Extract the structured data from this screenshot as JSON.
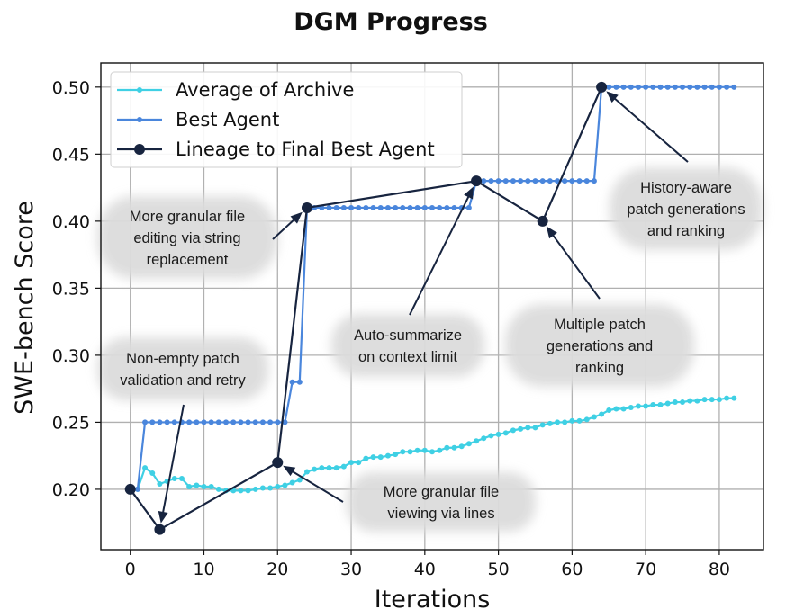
{
  "chart_data": {
    "type": "line",
    "title": "DGM Progress",
    "xlabel": "Iterations",
    "ylabel": "SWE-bench Score",
    "xlim": [
      -4,
      86
    ],
    "ylim": [
      0.155,
      0.518
    ],
    "xticks": [
      0,
      10,
      20,
      30,
      40,
      50,
      60,
      70,
      80
    ],
    "yticks": [
      0.2,
      0.25,
      0.3,
      0.35,
      0.4,
      0.45,
      0.5
    ],
    "xtick_labels": [
      "0",
      "10",
      "20",
      "30",
      "40",
      "50",
      "60",
      "70",
      "80"
    ],
    "ytick_labels": [
      "0.20",
      "0.25",
      "0.30",
      "0.35",
      "0.40",
      "0.45",
      "0.50"
    ],
    "grid": true,
    "legend_position": "top-left",
    "series": [
      {
        "name": "Average of Archive",
        "color": "#3fd0e4",
        "x": [
          0,
          1,
          2,
          3,
          4,
          5,
          6,
          7,
          8,
          9,
          10,
          11,
          12,
          13,
          14,
          15,
          16,
          17,
          18,
          19,
          20,
          21,
          22,
          23,
          24,
          25,
          26,
          27,
          28,
          29,
          30,
          31,
          32,
          33,
          34,
          35,
          36,
          37,
          38,
          39,
          40,
          41,
          42,
          43,
          44,
          45,
          46,
          47,
          48,
          49,
          50,
          51,
          52,
          53,
          54,
          55,
          56,
          57,
          58,
          59,
          60,
          61,
          62,
          63,
          64,
          65,
          66,
          67,
          68,
          69,
          70,
          71,
          72,
          73,
          74,
          75,
          76,
          77,
          78,
          79,
          80,
          81,
          82
        ],
        "y": [
          0.2,
          0.2,
          0.216,
          0.212,
          0.204,
          0.206,
          0.208,
          0.208,
          0.202,
          0.203,
          0.202,
          0.202,
          0.2,
          0.199,
          0.199,
          0.199,
          0.199,
          0.2,
          0.201,
          0.201,
          0.202,
          0.203,
          0.205,
          0.207,
          0.213,
          0.215,
          0.216,
          0.216,
          0.216,
          0.217,
          0.22,
          0.22,
          0.223,
          0.224,
          0.224,
          0.225,
          0.226,
          0.228,
          0.228,
          0.229,
          0.229,
          0.228,
          0.229,
          0.231,
          0.231,
          0.232,
          0.234,
          0.236,
          0.238,
          0.24,
          0.241,
          0.242,
          0.244,
          0.245,
          0.246,
          0.246,
          0.248,
          0.249,
          0.25,
          0.25,
          0.251,
          0.251,
          0.252,
          0.254,
          0.256,
          0.259,
          0.26,
          0.26,
          0.261,
          0.262,
          0.262,
          0.263,
          0.263,
          0.264,
          0.265,
          0.265,
          0.266,
          0.266,
          0.267,
          0.267,
          0.267,
          0.268,
          0.268
        ]
      },
      {
        "name": "Best Agent",
        "color": "#4a86dc",
        "x": [
          0,
          1,
          2,
          3,
          4,
          5,
          6,
          7,
          8,
          9,
          10,
          11,
          12,
          13,
          14,
          15,
          16,
          17,
          18,
          19,
          20,
          21,
          22,
          23,
          24,
          25,
          26,
          27,
          28,
          29,
          30,
          31,
          32,
          33,
          34,
          35,
          36,
          37,
          38,
          39,
          40,
          41,
          42,
          43,
          44,
          45,
          46,
          47,
          48,
          49,
          50,
          51,
          52,
          53,
          54,
          55,
          56,
          57,
          58,
          59,
          60,
          61,
          62,
          63,
          64,
          65,
          66,
          67,
          68,
          69,
          70,
          71,
          72,
          73,
          74,
          75,
          76,
          77,
          78,
          79,
          80,
          81,
          82
        ],
        "y": [
          0.2,
          0.2,
          0.25,
          0.25,
          0.25,
          0.25,
          0.25,
          0.25,
          0.25,
          0.25,
          0.25,
          0.25,
          0.25,
          0.25,
          0.25,
          0.25,
          0.25,
          0.25,
          0.25,
          0.25,
          0.25,
          0.25,
          0.28,
          0.28,
          0.41,
          0.41,
          0.41,
          0.41,
          0.41,
          0.41,
          0.41,
          0.41,
          0.41,
          0.41,
          0.41,
          0.41,
          0.41,
          0.41,
          0.41,
          0.41,
          0.41,
          0.41,
          0.41,
          0.41,
          0.41,
          0.41,
          0.41,
          0.43,
          0.43,
          0.43,
          0.43,
          0.43,
          0.43,
          0.43,
          0.43,
          0.43,
          0.43,
          0.43,
          0.43,
          0.43,
          0.43,
          0.43,
          0.43,
          0.43,
          0.5,
          0.5,
          0.5,
          0.5,
          0.5,
          0.5,
          0.5,
          0.5,
          0.5,
          0.5,
          0.5,
          0.5,
          0.5,
          0.5,
          0.5,
          0.5,
          0.5,
          0.5,
          0.5
        ]
      },
      {
        "name": "Lineage to Final Best Agent",
        "color": "#17243f",
        "x": [
          0,
          4,
          20,
          24,
          47,
          56,
          64
        ],
        "y": [
          0.2,
          0.17,
          0.22,
          0.41,
          0.43,
          0.4,
          0.5
        ]
      }
    ],
    "annotations": [
      {
        "lines": [
          "Non-empty patch",
          "validation and retry"
        ],
        "target": [
          4,
          0.17
        ]
      },
      {
        "lines": [
          "More granular file",
          "viewing via lines"
        ],
        "target": [
          20,
          0.22
        ]
      },
      {
        "lines": [
          "More granular file",
          "editing via string",
          "replacement"
        ],
        "target": [
          24,
          0.41
        ]
      },
      {
        "lines": [
          "Auto-summarize",
          "on context limit"
        ],
        "target": [
          47,
          0.43
        ]
      },
      {
        "lines": [
          "Multiple patch",
          "generations and",
          "ranking"
        ],
        "target": [
          56,
          0.4
        ]
      },
      {
        "lines": [
          "History-aware",
          "patch generations",
          "and ranking"
        ],
        "target": [
          64,
          0.5
        ]
      }
    ]
  }
}
